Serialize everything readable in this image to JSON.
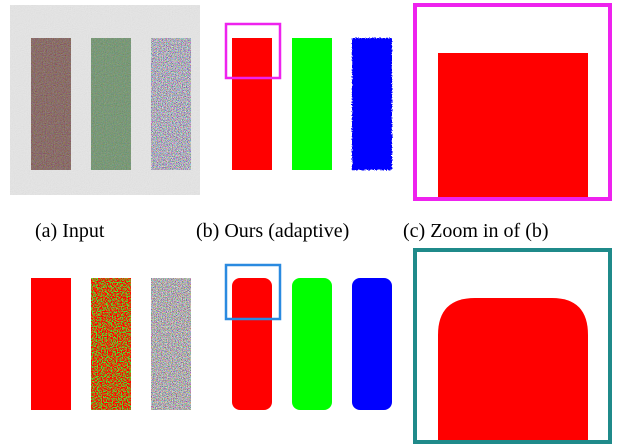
{
  "figure": {
    "captions": [
      "(a) Input",
      "(b) Ours (adaptive)",
      "(c) Zoom in of (b)"
    ]
  }
}
